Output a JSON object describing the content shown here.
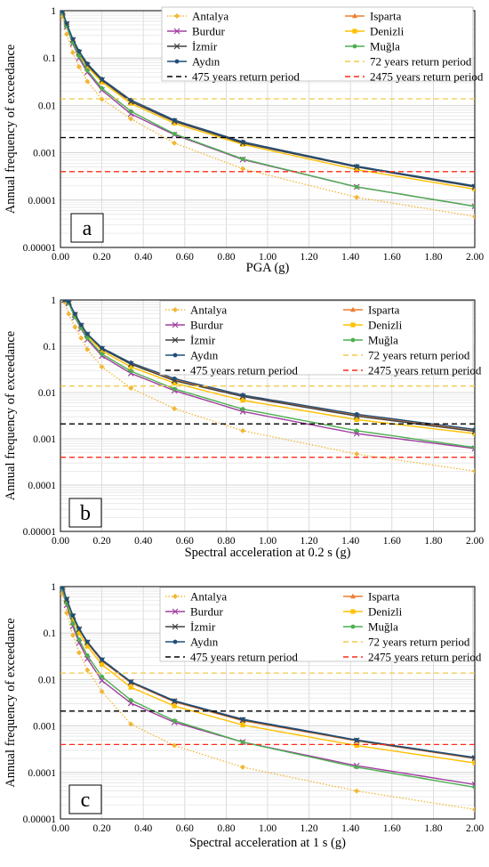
{
  "chart_data": [
    {
      "type": "line",
      "panel_label": "a",
      "xlabel": "PGA (g)",
      "ylabel": "Annual frequency of exceedance",
      "xlim": [
        0,
        2.0
      ],
      "ylim": [
        1e-05,
        1
      ],
      "yscale": "log",
      "x_ticks": [
        "0.00",
        "0.20",
        "0.40",
        "0.60",
        "0.80",
        "1.00",
        "1.20",
        "1.40",
        "1.60",
        "1.80",
        "2.00"
      ],
      "y_ticks": [
        "1",
        "0.1",
        "0.01",
        "0.001",
        "0.0001",
        "0.00001"
      ],
      "grid": true,
      "legend": "top-right",
      "series": [
        {
          "name": "Antalya",
          "color": "#f2b632",
          "marker": "diamond",
          "dash": "dot",
          "x": [
            0.01,
            0.03,
            0.06,
            0.09,
            0.13,
            0.2,
            0.34,
            0.55,
            0.88,
            1.43,
            2.0
          ],
          "y": [
            0.75,
            0.32,
            0.13,
            0.065,
            0.032,
            0.0135,
            0.0052,
            0.0016,
            0.00046,
            0.000115,
            4.5e-05
          ]
        },
        {
          "name": "Isparta",
          "color": "#ed7d31",
          "marker": "triangle",
          "dash": "solid",
          "x": [
            0.01,
            0.03,
            0.06,
            0.09,
            0.13,
            0.2,
            0.34,
            0.55,
            0.88,
            1.43,
            2.0
          ],
          "y": [
            0.95,
            0.52,
            0.24,
            0.13,
            0.072,
            0.034,
            0.0122,
            0.0047,
            0.0017,
            0.00051,
            0.000195
          ]
        },
        {
          "name": "Burdur",
          "color": "#a040a0",
          "marker": "x",
          "dash": "solid",
          "x": [
            0.01,
            0.03,
            0.06,
            0.09,
            0.13,
            0.2,
            0.34,
            0.55,
            0.88,
            1.43,
            2.0
          ],
          "y": [
            0.9,
            0.46,
            0.2,
            0.1,
            0.05,
            0.021,
            0.0066,
            0.0024,
            0.00072,
            0.00019,
            7.4e-05
          ]
        },
        {
          "name": "Denizli",
          "color": "#ffc000",
          "marker": "square",
          "dash": "solid",
          "x": [
            0.01,
            0.03,
            0.06,
            0.09,
            0.13,
            0.2,
            0.34,
            0.55,
            0.88,
            1.43,
            2.0
          ],
          "y": [
            0.95,
            0.5,
            0.23,
            0.12,
            0.066,
            0.031,
            0.011,
            0.0042,
            0.0015,
            0.00044,
            0.00017
          ]
        },
        {
          "name": "İzmir",
          "color": "#404040",
          "marker": "x",
          "dash": "solid",
          "x": [
            0.01,
            0.03,
            0.06,
            0.09,
            0.13,
            0.2,
            0.34,
            0.55,
            0.88,
            1.43,
            2.0
          ],
          "y": [
            0.95,
            0.52,
            0.24,
            0.13,
            0.071,
            0.034,
            0.012,
            0.0046,
            0.0016,
            0.0005,
            0.00019
          ]
        },
        {
          "name": "Muğla",
          "color": "#4caf50",
          "marker": "circle",
          "dash": "solid",
          "x": [
            0.01,
            0.03,
            0.06,
            0.09,
            0.13,
            0.2,
            0.34,
            0.55,
            0.88,
            1.43,
            2.0
          ],
          "y": [
            0.9,
            0.47,
            0.21,
            0.11,
            0.055,
            0.023,
            0.0075,
            0.0025,
            0.00074,
            0.00019,
            7.4e-05
          ]
        },
        {
          "name": "Aydın",
          "color": "#1f4e79",
          "marker": "circle",
          "dash": "solid",
          "x": [
            0.01,
            0.03,
            0.06,
            0.09,
            0.13,
            0.2,
            0.34,
            0.55,
            0.88,
            1.43,
            2.0
          ],
          "y": [
            0.97,
            0.54,
            0.25,
            0.14,
            0.076,
            0.036,
            0.013,
            0.0049,
            0.0017,
            0.00052,
            0.0002
          ]
        },
        {
          "name": "72 years return period",
          "color": "#f2c94c",
          "dash": "dash",
          "x": [
            0,
            2.0
          ],
          "y": [
            0.0138,
            0.0138
          ]
        },
        {
          "name": "475 years return period",
          "color": "#000000",
          "dash": "dash",
          "x": [
            0,
            2.0
          ],
          "y": [
            0.0021,
            0.0021
          ]
        },
        {
          "name": "2475 years return period",
          "color": "#ff2a1a",
          "dash": "dash",
          "x": [
            0,
            2.0
          ],
          "y": [
            0.0004,
            0.0004
          ]
        }
      ]
    },
    {
      "type": "line",
      "panel_label": "b",
      "xlabel": "Spectral acceleration at 0.2 s  (g)",
      "ylabel": "Annual frequency of exceedance",
      "xlim": [
        0,
        2.0
      ],
      "ylim": [
        1e-05,
        1
      ],
      "yscale": "log",
      "x_ticks": [
        "0.00",
        "0.20",
        "0.40",
        "0.60",
        "0.80",
        "1.00",
        "1.20",
        "1.40",
        "1.60",
        "1.80",
        "2.00"
      ],
      "y_ticks": [
        "1",
        "0.1",
        "0.01",
        "0.001",
        "0.0001",
        "0.00001"
      ],
      "grid": true,
      "legend": "top-right",
      "series": [
        {
          "name": "Antalya",
          "color": "#f2b632",
          "marker": "diamond",
          "dash": "dot",
          "x": [
            0.02,
            0.04,
            0.07,
            0.1,
            0.13,
            0.2,
            0.34,
            0.55,
            0.88,
            1.43,
            2.0
          ],
          "y": [
            0.9,
            0.5,
            0.26,
            0.15,
            0.085,
            0.036,
            0.0125,
            0.0045,
            0.0015,
            0.00047,
            0.0002
          ]
        },
        {
          "name": "Isparta",
          "color": "#ed7d31",
          "marker": "triangle",
          "dash": "solid",
          "x": [
            0.02,
            0.04,
            0.07,
            0.1,
            0.13,
            0.2,
            0.34,
            0.55,
            0.88,
            1.43,
            2.0
          ],
          "y": [
            1.0,
            0.9,
            0.48,
            0.28,
            0.18,
            0.09,
            0.042,
            0.019,
            0.0085,
            0.0033,
            0.0015
          ]
        },
        {
          "name": "Burdur",
          "color": "#a040a0",
          "marker": "x",
          "dash": "solid",
          "x": [
            0.02,
            0.04,
            0.07,
            0.1,
            0.13,
            0.2,
            0.34,
            0.55,
            0.88,
            1.43,
            2.0
          ],
          "y": [
            1.0,
            0.85,
            0.42,
            0.24,
            0.14,
            0.062,
            0.026,
            0.011,
            0.0039,
            0.0013,
            0.00062
          ]
        },
        {
          "name": "Denizli",
          "color": "#ffc000",
          "marker": "square",
          "dash": "solid",
          "x": [
            0.02,
            0.04,
            0.07,
            0.1,
            0.13,
            0.2,
            0.34,
            0.55,
            0.88,
            1.43,
            2.0
          ],
          "y": [
            1.0,
            0.88,
            0.46,
            0.26,
            0.165,
            0.08,
            0.036,
            0.016,
            0.0068,
            0.0026,
            0.0013
          ]
        },
        {
          "name": "İzmir",
          "color": "#404040",
          "marker": "x",
          "dash": "solid",
          "x": [
            0.02,
            0.04,
            0.07,
            0.1,
            0.13,
            0.2,
            0.34,
            0.55,
            0.88,
            1.43,
            2.0
          ],
          "y": [
            1.0,
            0.9,
            0.48,
            0.28,
            0.18,
            0.088,
            0.041,
            0.018,
            0.0082,
            0.0031,
            0.00145
          ]
        },
        {
          "name": "Muğla",
          "color": "#4caf50",
          "marker": "circle",
          "dash": "solid",
          "x": [
            0.02,
            0.04,
            0.07,
            0.1,
            0.13,
            0.2,
            0.34,
            0.55,
            0.88,
            1.43,
            2.0
          ],
          "y": [
            1.0,
            0.85,
            0.43,
            0.25,
            0.15,
            0.068,
            0.029,
            0.012,
            0.0044,
            0.0015,
            0.00065
          ]
        },
        {
          "name": "Aydın",
          "color": "#1f4e79",
          "marker": "circle",
          "dash": "solid",
          "x": [
            0.02,
            0.04,
            0.07,
            0.1,
            0.13,
            0.2,
            0.34,
            0.55,
            0.88,
            1.43,
            2.0
          ],
          "y": [
            1.0,
            0.92,
            0.5,
            0.29,
            0.185,
            0.092,
            0.044,
            0.02,
            0.0088,
            0.0034,
            0.0016
          ]
        },
        {
          "name": "72 years return period",
          "color": "#f2c94c",
          "dash": "dash",
          "x": [
            0,
            2.0
          ],
          "y": [
            0.0138,
            0.0138
          ]
        },
        {
          "name": "475 years return period",
          "color": "#000000",
          "dash": "dash",
          "x": [
            0,
            2.0
          ],
          "y": [
            0.0021,
            0.0021
          ]
        },
        {
          "name": "2475 years return period",
          "color": "#ff2a1a",
          "dash": "dash",
          "x": [
            0,
            2.0
          ],
          "y": [
            0.0004,
            0.0004
          ]
        }
      ]
    },
    {
      "type": "line",
      "panel_label": "c",
      "xlabel": "Spectral acceleration at 1 s  (g)",
      "ylabel": "Annual frequency of exceedance",
      "xlim": [
        0,
        2.0
      ],
      "ylim": [
        1e-05,
        1
      ],
      "yscale": "log",
      "x_ticks": [
        "0.00",
        "0.20",
        "0.40",
        "0.60",
        "0.80",
        "1.00",
        "1.20",
        "1.40",
        "1.60",
        "1.80",
        "2.00"
      ],
      "y_ticks": [
        "1",
        "0.1",
        "0.01",
        "0.001",
        "0.0001",
        "0.00001"
      ],
      "grid": true,
      "legend": "top-right",
      "series": [
        {
          "name": "Antalya",
          "color": "#f2b632",
          "marker": "diamond",
          "dash": "dot",
          "x": [
            0.01,
            0.03,
            0.06,
            0.09,
            0.13,
            0.2,
            0.34,
            0.55,
            0.88,
            1.43,
            2.0
          ],
          "y": [
            0.7,
            0.27,
            0.09,
            0.038,
            0.016,
            0.0055,
            0.0011,
            0.00038,
            0.00013,
            4e-05,
            1.6e-05
          ]
        },
        {
          "name": "Isparta",
          "color": "#ed7d31",
          "marker": "triangle",
          "dash": "solid",
          "x": [
            0.01,
            0.03,
            0.06,
            0.09,
            0.13,
            0.2,
            0.34,
            0.55,
            0.88,
            1.43,
            2.0
          ],
          "y": [
            0.95,
            0.52,
            0.22,
            0.12,
            0.06,
            0.025,
            0.0085,
            0.0033,
            0.0013,
            0.00048,
            0.0002
          ]
        },
        {
          "name": "Burdur",
          "color": "#a040a0",
          "marker": "x",
          "dash": "solid",
          "x": [
            0.01,
            0.03,
            0.06,
            0.09,
            0.13,
            0.2,
            0.34,
            0.55,
            0.88,
            1.43,
            2.0
          ],
          "y": [
            0.85,
            0.4,
            0.14,
            0.062,
            0.028,
            0.0095,
            0.0031,
            0.0012,
            0.00045,
            0.00014,
            5.5e-05
          ]
        },
        {
          "name": "Denizli",
          "color": "#ffc000",
          "marker": "square",
          "dash": "solid",
          "x": [
            0.01,
            0.03,
            0.06,
            0.09,
            0.13,
            0.2,
            0.34,
            0.55,
            0.88,
            1.43,
            2.0
          ],
          "y": [
            0.92,
            0.48,
            0.2,
            0.1,
            0.052,
            0.021,
            0.0068,
            0.0027,
            0.00105,
            0.00038,
            0.00016
          ]
        },
        {
          "name": "İzmir",
          "color": "#404040",
          "marker": "x",
          "dash": "solid",
          "x": [
            0.01,
            0.03,
            0.06,
            0.09,
            0.13,
            0.2,
            0.34,
            0.55,
            0.88,
            1.43,
            2.0
          ],
          "y": [
            0.95,
            0.53,
            0.23,
            0.12,
            0.063,
            0.026,
            0.0088,
            0.0034,
            0.00135,
            0.00049,
            0.000205
          ]
        },
        {
          "name": "Muğla",
          "color": "#4caf50",
          "marker": "circle",
          "dash": "solid",
          "x": [
            0.01,
            0.03,
            0.06,
            0.09,
            0.13,
            0.2,
            0.34,
            0.55,
            0.88,
            1.43,
            2.0
          ],
          "y": [
            0.88,
            0.44,
            0.16,
            0.072,
            0.033,
            0.0115,
            0.0036,
            0.0013,
            0.00045,
            0.00013,
            4.8e-05
          ]
        },
        {
          "name": "Aydın",
          "color": "#1f4e79",
          "marker": "circle",
          "dash": "solid",
          "x": [
            0.01,
            0.03,
            0.06,
            0.09,
            0.13,
            0.2,
            0.34,
            0.55,
            0.88,
            1.43,
            2.0
          ],
          "y": [
            0.96,
            0.54,
            0.24,
            0.125,
            0.065,
            0.027,
            0.009,
            0.0035,
            0.0014,
            0.0005,
            0.00021
          ]
        },
        {
          "name": "72 years return period",
          "color": "#f2c94c",
          "dash": "dash",
          "x": [
            0,
            2.0
          ],
          "y": [
            0.0138,
            0.0138
          ]
        },
        {
          "name": "475 years return period",
          "color": "#000000",
          "dash": "dash",
          "x": [
            0,
            2.0
          ],
          "y": [
            0.0021,
            0.0021
          ]
        },
        {
          "name": "2475 years return period",
          "color": "#ff2a1a",
          "dash": "dash",
          "x": [
            0,
            2.0
          ],
          "y": [
            0.0004,
            0.0004
          ]
        }
      ]
    }
  ]
}
